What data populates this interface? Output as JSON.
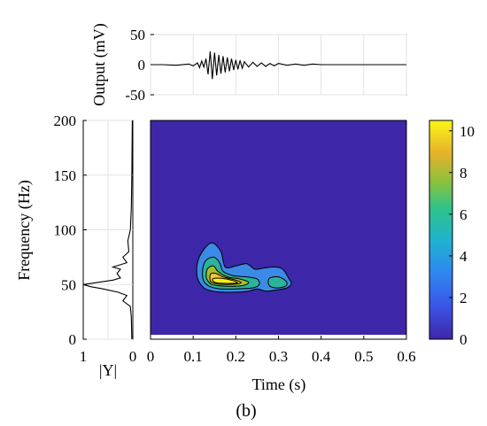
{
  "figure": {
    "panel_label": "(b)"
  },
  "chart_data": [
    {
      "type": "line",
      "panel": "time-signal",
      "ylabel": "Output (mV)",
      "ylim": [
        -50,
        50
      ],
      "xlim": [
        0,
        0.6
      ],
      "y_ticks": [
        "50",
        "0",
        "-50"
      ],
      "x": [
        0,
        0.03,
        0.06,
        0.09,
        0.1,
        0.11,
        0.115,
        0.12,
        0.125,
        0.13,
        0.135,
        0.14,
        0.145,
        0.15,
        0.155,
        0.16,
        0.165,
        0.17,
        0.175,
        0.18,
        0.185,
        0.19,
        0.195,
        0.2,
        0.205,
        0.21,
        0.215,
        0.22,
        0.23,
        0.24,
        0.25,
        0.26,
        0.27,
        0.28,
        0.29,
        0.3,
        0.32,
        0.34,
        0.36,
        0.38,
        0.4,
        0.45,
        0.5,
        0.55,
        0.6
      ],
      "y": [
        0,
        0,
        -1,
        1,
        -2,
        3,
        -5,
        6,
        -4,
        10,
        -16,
        22,
        -24,
        20,
        -18,
        16,
        -15,
        14,
        -13,
        12,
        -11,
        10,
        -9,
        8,
        -8,
        7,
        -6,
        5,
        -4,
        4,
        -3,
        3,
        -3,
        2,
        -2,
        2,
        -1,
        1,
        -1,
        1,
        0,
        0,
        0,
        0,
        0
      ]
    },
    {
      "type": "line",
      "panel": "spectrum",
      "xlabel": "|Y|",
      "xlim": [
        1,
        0
      ],
      "x_ticks": [
        "1",
        "0"
      ],
      "freq": [
        0,
        20,
        30,
        35,
        40,
        43,
        46,
        48,
        50,
        52,
        54,
        56,
        60,
        64,
        66,
        70,
        75,
        80,
        90,
        100,
        120,
        150,
        200
      ],
      "mag": [
        0.02,
        0.03,
        0.05,
        0.2,
        0.12,
        0.3,
        0.6,
        0.85,
        1.0,
        0.7,
        0.4,
        0.25,
        0.32,
        0.25,
        0.4,
        0.12,
        0.2,
        0.08,
        0.1,
        0.05,
        0.03,
        0.02,
        0.01
      ]
    },
    {
      "type": "heatmap",
      "panel": "time-frequency",
      "xlabel": "Time (s)",
      "ylabel": "Frequency (Hz)",
      "xlim": [
        0,
        0.6
      ],
      "ylim": [
        0,
        200
      ],
      "x_ticks": [
        "0",
        "0.1",
        "0.2",
        "0.3",
        "0.4",
        "0.5",
        "0.6"
      ],
      "y_ticks": [
        "200",
        "150",
        "100",
        "50",
        "0"
      ],
      "colorbar": {
        "min": 0,
        "max": 10.5,
        "ticks": [
          "10",
          "8",
          "6",
          "4",
          "2",
          "0"
        ]
      },
      "levels": [
        {
          "value": 1.5,
          "color": "#3a8ae6",
          "regions": [
            {
              "points": [
                [
                  0.125,
                  82
                ],
                [
                  0.145,
                  88
                ],
                [
                  0.165,
                  80
                ],
                [
                  0.175,
                  66
                ],
                [
                  0.2,
                  67
                ],
                [
                  0.225,
                  69
                ],
                [
                  0.245,
                  64
                ],
                [
                  0.265,
                  65
                ],
                [
                  0.29,
                  66
                ],
                [
                  0.31,
                  64
                ],
                [
                  0.325,
                  55
                ],
                [
                  0.33,
                  51
                ],
                [
                  0.32,
                  47
                ],
                [
                  0.295,
                  45
                ],
                [
                  0.27,
                  44
                ],
                [
                  0.25,
                  46
                ],
                [
                  0.23,
                  44
                ],
                [
                  0.2,
                  43
                ],
                [
                  0.17,
                  43
                ],
                [
                  0.145,
                  44
                ],
                [
                  0.125,
                  47
                ],
                [
                  0.11,
                  56
                ],
                [
                  0.11,
                  70
                ]
              ]
            }
          ]
        },
        {
          "value": 4,
          "color": "#2bb39b",
          "regions": [
            {
              "points": [
                [
                  0.13,
                  72
                ],
                [
                  0.148,
                  75
                ],
                [
                  0.162,
                  70
                ],
                [
                  0.17,
                  62
                ],
                [
                  0.195,
                  58
                ],
                [
                  0.225,
                  57
                ],
                [
                  0.25,
                  55
                ],
                [
                  0.255,
                  50
                ],
                [
                  0.24,
                  47
                ],
                [
                  0.2,
                  46
                ],
                [
                  0.165,
                  46
                ],
                [
                  0.14,
                  48
                ],
                [
                  0.125,
                  53
                ],
                [
                  0.122,
                  63
                ]
              ]
            },
            {
              "points": [
                [
                  0.28,
                  56
                ],
                [
                  0.3,
                  57
                ],
                [
                  0.318,
                  53
                ],
                [
                  0.318,
                  49
                ],
                [
                  0.3,
                  47
                ],
                [
                  0.282,
                  48
                ],
                [
                  0.276,
                  52
                ]
              ]
            }
          ]
        },
        {
          "value": 6,
          "color": "#a6bf2e",
          "regions": [
            {
              "points": [
                [
                  0.135,
                  65
                ],
                [
                  0.148,
                  67
                ],
                [
                  0.158,
                  62
                ],
                [
                  0.18,
                  57
                ],
                [
                  0.21,
                  55
                ],
                [
                  0.23,
                  52
                ],
                [
                  0.215,
                  49
                ],
                [
                  0.175,
                  48.5
                ],
                [
                  0.145,
                  50
                ],
                [
                  0.132,
                  55
                ],
                [
                  0.131,
                  61
                ]
              ]
            }
          ]
        },
        {
          "value": 8,
          "color": "#f3c63a",
          "regions": [
            {
              "points": [
                [
                  0.142,
                  60
                ],
                [
                  0.154,
                  60
                ],
                [
                  0.17,
                  57
                ],
                [
                  0.2,
                  54
                ],
                [
                  0.212,
                  51.5
                ],
                [
                  0.19,
                  50.2
                ],
                [
                  0.16,
                  50.3
                ],
                [
                  0.142,
                  52.5
                ],
                [
                  0.139,
                  56.5
                ]
              ]
            }
          ]
        },
        {
          "value": 10,
          "color": "#f8f014",
          "regions": [
            {
              "points": [
                [
                  0.148,
                  55.5
                ],
                [
                  0.17,
                  55.5
                ],
                [
                  0.196,
                  53.2
                ],
                [
                  0.203,
                  51.4
                ],
                [
                  0.18,
                  51
                ],
                [
                  0.156,
                  51.5
                ],
                [
                  0.146,
                  53.5
                ]
              ]
            }
          ]
        }
      ]
    }
  ]
}
